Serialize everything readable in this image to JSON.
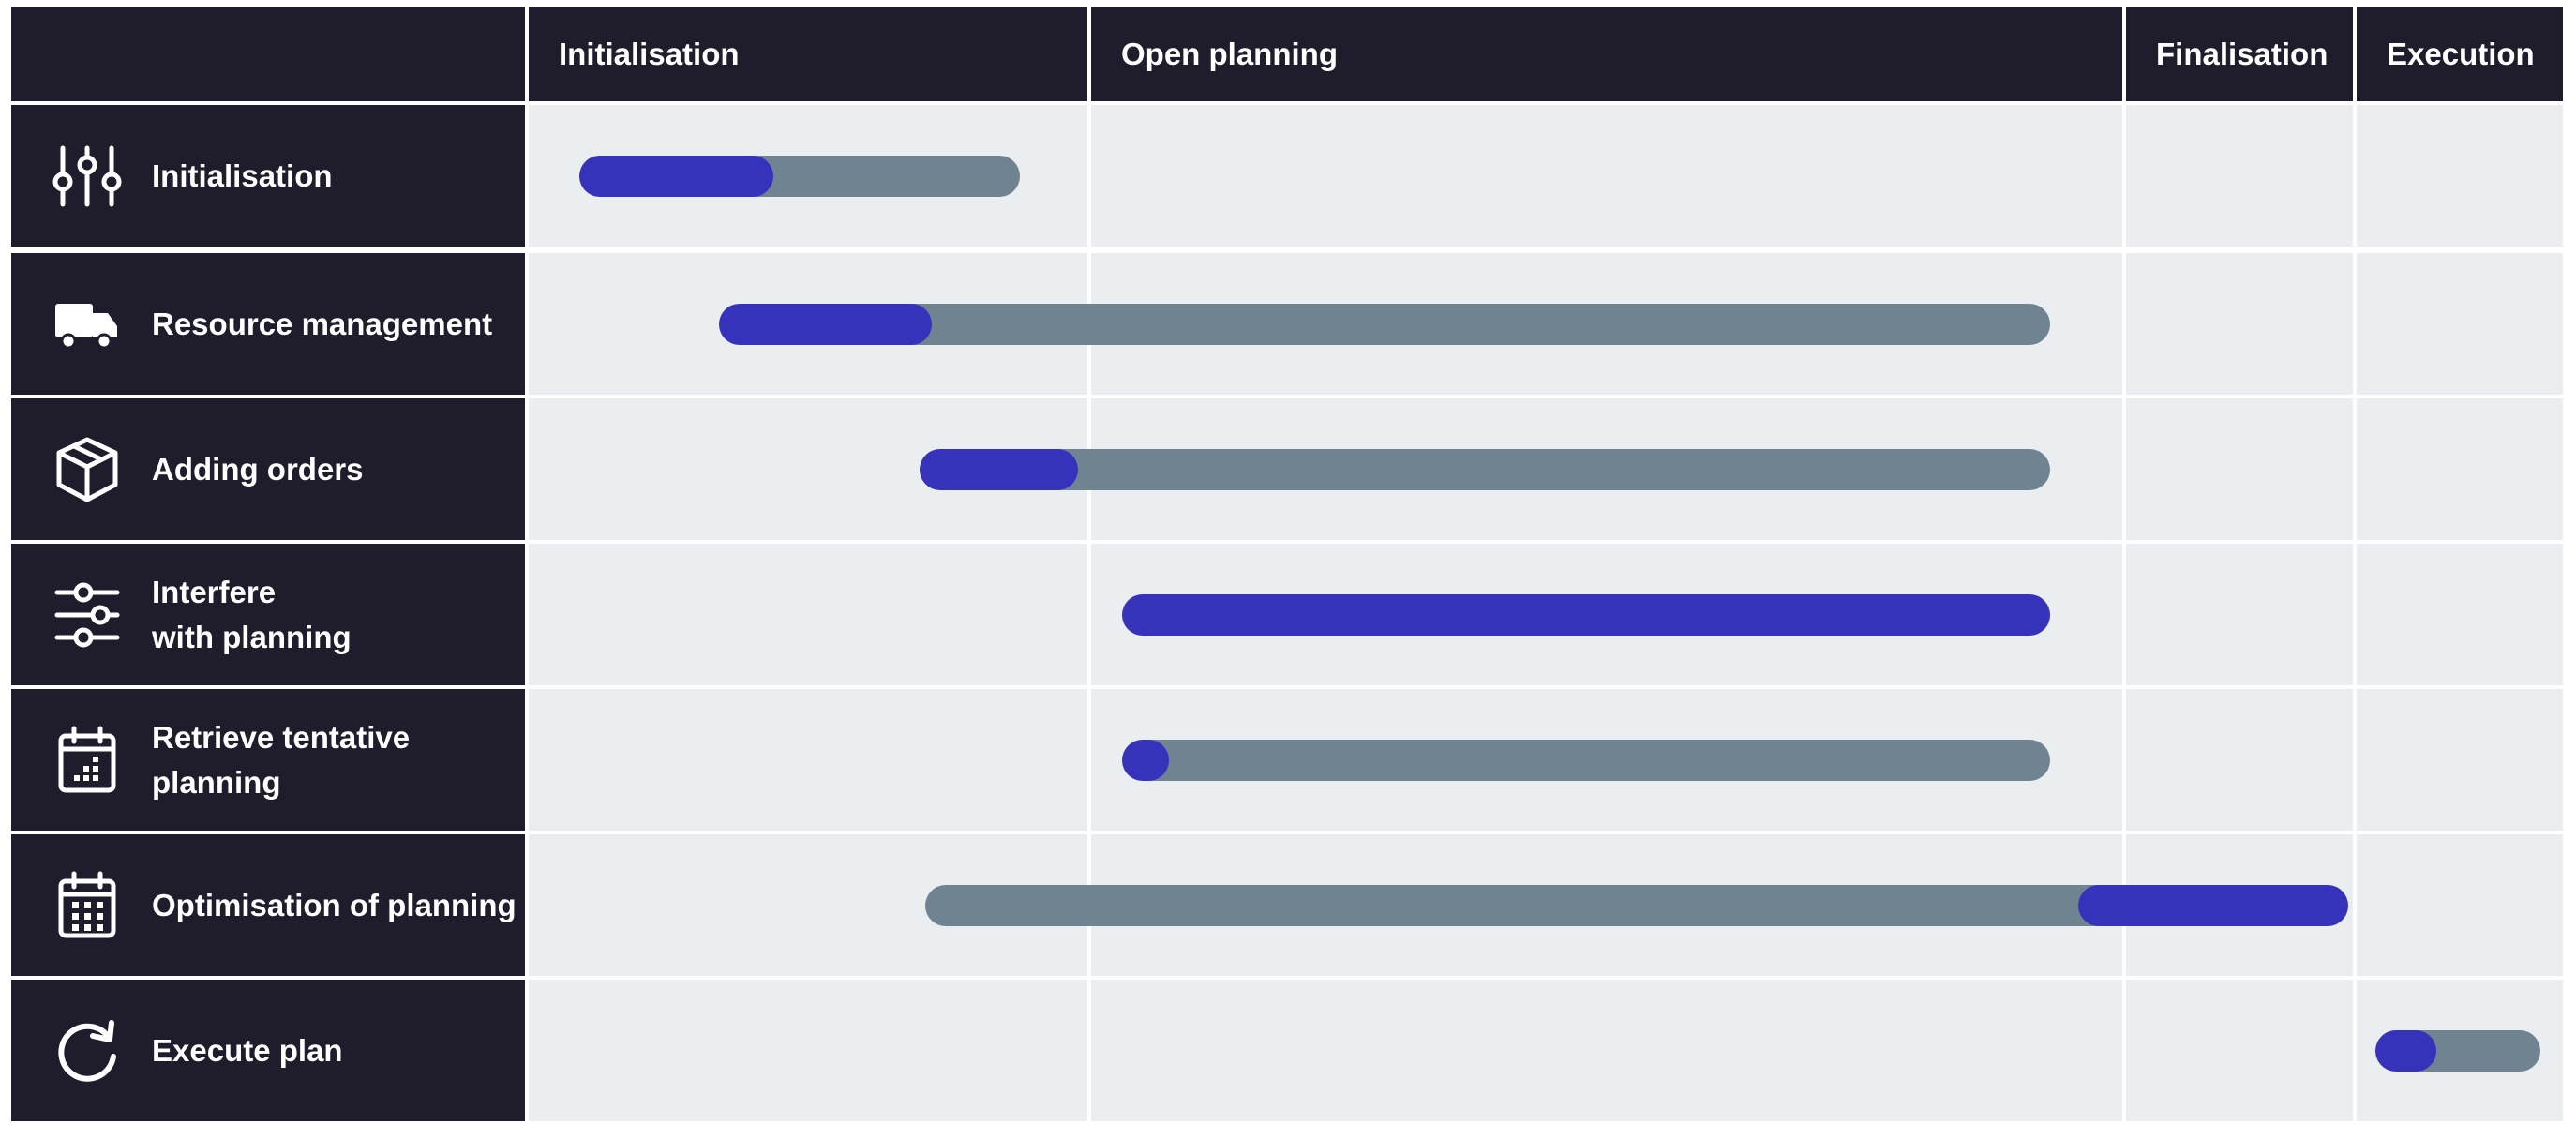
{
  "colors": {
    "header_bg": "#1f1d2c",
    "cell_bg": "#eaeef1",
    "track": "#6f8490",
    "progress": "#3632bc"
  },
  "phases": [
    {
      "label": "Initialisation"
    },
    {
      "label": "Open planning"
    },
    {
      "label": "Finalisation"
    },
    {
      "label": "Execution"
    }
  ],
  "tasks": [
    {
      "label": "Initialisation",
      "icon": "sliders-vertical-icon",
      "phase_span": [
        0.09,
        0.88
      ],
      "progress": 0.44
    },
    {
      "label": "Resource management",
      "icon": "truck-icon",
      "phase_span": [
        0.34,
        1.93
      ],
      "progress": 0.16
    },
    {
      "label": "Adding orders",
      "icon": "package-icon",
      "phase_span": [
        0.7,
        1.93
      ],
      "progress": 0.14
    },
    {
      "label": "Interfere\nwith planning",
      "icon": "sliders-horizontal-icon",
      "phase_span": [
        1.03,
        1.93
      ],
      "progress": 1.0
    },
    {
      "label": "Retrieve tentative\nplanning",
      "icon": "calendar-partial-icon",
      "phase_span": [
        1.03,
        1.93
      ],
      "progress": 0.05
    },
    {
      "label": "Optimisation of planning",
      "icon": "calendar-grid-icon",
      "phase_span": [
        0.71,
        2.98
      ],
      "progress": 0.19,
      "progress_align": "end"
    },
    {
      "label": "Execute plan",
      "icon": "refresh-icon",
      "phase_span": [
        3.09,
        3.89
      ],
      "progress": 0.37
    }
  ]
}
